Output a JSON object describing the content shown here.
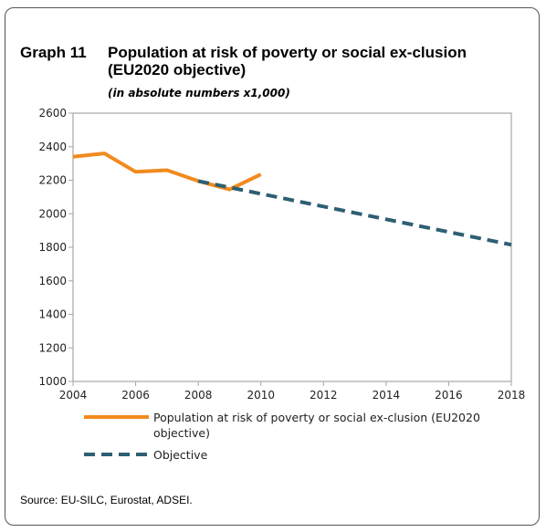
{
  "header": {
    "label": "Graph 11",
    "title": "Population at risk of poverty or social ex-clusion (EU2020 objective)",
    "subtitle": "(in absolute numbers x1,000)"
  },
  "source": "Source: EU-SILC, Eurostat, ADSEI.",
  "colors": {
    "population": "#f28a1e",
    "objective": "#2e5f73",
    "axis": "#a6a6a6"
  },
  "chart_data": {
    "type": "line",
    "title": "Population at risk of poverty or social ex-clusion (EU2020 objective)",
    "subtitle": "(in absolute numbers x1,000)",
    "xlabel": "",
    "ylabel": "",
    "xlim": [
      2004,
      2018
    ],
    "ylim": [
      1000,
      2600
    ],
    "xticks": [
      2004,
      2006,
      2008,
      2010,
      2012,
      2014,
      2016,
      2018
    ],
    "yticks": [
      1000,
      1200,
      1400,
      1600,
      1800,
      2000,
      2200,
      2400,
      2600
    ],
    "grid": false,
    "legend_position": "bottom",
    "series": [
      {
        "name": "Population at risk of poverty or social ex-clusion (EU2020 objective)",
        "style": "solid",
        "x": [
          2004,
          2005,
          2006,
          2007,
          2008,
          2009,
          2010
        ],
        "y": [
          2340,
          2360,
          2250,
          2260,
          2195,
          2145,
          2235
        ]
      },
      {
        "name": "Objective",
        "style": "dashed",
        "x": [
          2008,
          2018
        ],
        "y": [
          2195,
          1815
        ]
      }
    ]
  }
}
